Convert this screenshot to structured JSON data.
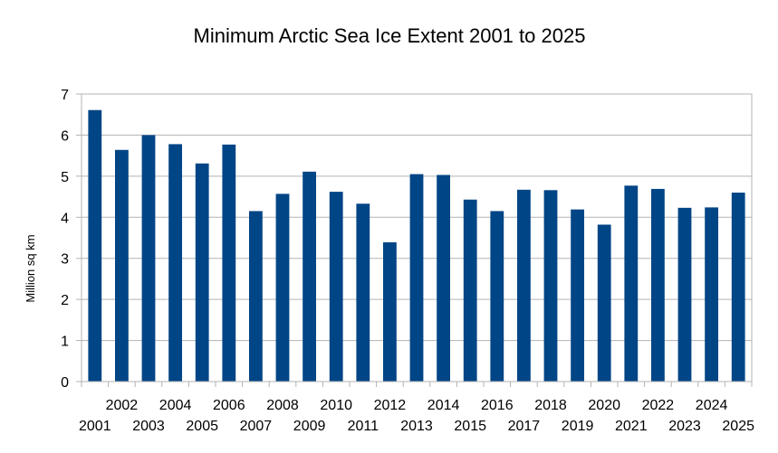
{
  "chart_data": {
    "type": "bar",
    "title": "Minimum Arctic Sea Ice Extent 2001 to 2025",
    "xlabel": "",
    "ylabel": "Million sq km",
    "ylim": [
      0,
      7
    ],
    "yticks": [
      0,
      1,
      2,
      3,
      4,
      5,
      6,
      7
    ],
    "grid": true,
    "legend": "none",
    "categories": [
      "2001",
      "2002",
      "2003",
      "2004",
      "2005",
      "2006",
      "2007",
      "2008",
      "2009",
      "2010",
      "2011",
      "2012",
      "2013",
      "2014",
      "2015",
      "2016",
      "2017",
      "2018",
      "2019",
      "2020",
      "2021",
      "2022",
      "2023",
      "2024",
      "2025"
    ],
    "values": [
      6.61,
      5.64,
      6.0,
      5.78,
      5.31,
      5.77,
      4.15,
      4.57,
      5.11,
      4.62,
      4.33,
      3.39,
      5.05,
      5.03,
      4.43,
      4.15,
      4.67,
      4.66,
      4.19,
      3.82,
      4.77,
      4.69,
      4.23,
      4.24,
      4.6
    ],
    "bar_color": "#004586"
  }
}
